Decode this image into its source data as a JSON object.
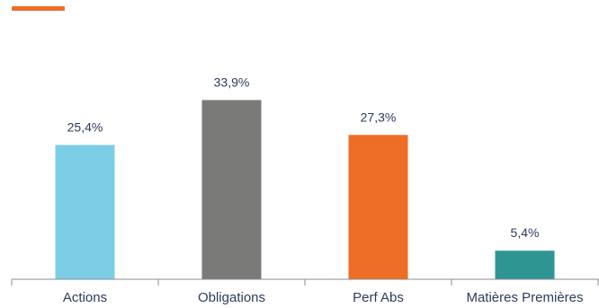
{
  "accent_color": "#ee6e25",
  "chart_data": {
    "type": "bar",
    "title": "",
    "xlabel": "",
    "ylabel": "",
    "ylim": [
      0,
      40
    ],
    "grid": false,
    "legend": "none",
    "categories": [
      "Actions",
      "Obligations",
      "Perf Abs",
      "Matières Premières"
    ],
    "values": [
      25.4,
      33.9,
      27.3,
      5.4
    ],
    "value_labels": [
      "25,4%",
      "33,9%",
      "27,3%",
      "5,4%"
    ],
    "colors": [
      "#7ccde6",
      "#7a7a78",
      "#ee6e25",
      "#2e9593"
    ],
    "axis_color": "#8c8c8c"
  }
}
